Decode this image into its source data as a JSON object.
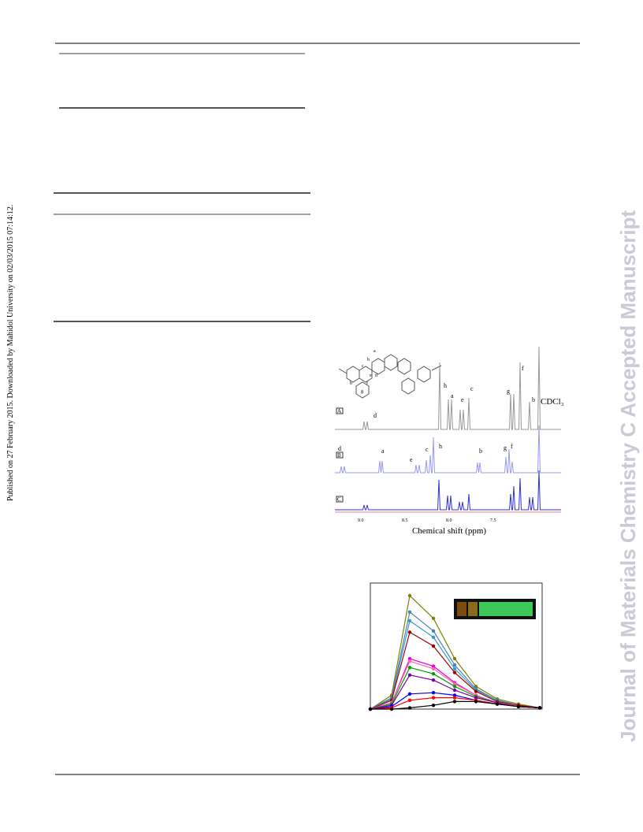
{
  "side_note": "Published on 27 February 2015. Downloaded by Mahidol University on 02/03/2015 07:14:12.",
  "watermark": "Journal of Materials Chemistry C Accepted Manuscript",
  "nmr_figure": {
    "panels": [
      "A",
      "B",
      "C"
    ],
    "solvent": "CDCl₃",
    "x_axis_label": "Chemical shift (ppm)",
    "xticks": [
      "9.0",
      "8.5",
      "8.0",
      "7.5"
    ],
    "panel_a_peaks": [
      "d",
      "h",
      "a",
      "e",
      "c",
      "g",
      "f",
      "b"
    ],
    "panel_b_peaks": [
      "d",
      "a",
      "e",
      "c",
      "h",
      "b",
      "g",
      "f"
    ],
    "structure_labels": [
      "a",
      "b",
      "c",
      "d",
      "e",
      "f",
      "g",
      "b"
    ]
  },
  "chart_data": {
    "type": "line",
    "x": [
      0,
      27,
      50,
      80,
      107,
      134,
      161,
      188,
      215
    ],
    "xlim": [
      0,
      218
    ],
    "ylim": [
      0,
      100
    ],
    "series": [
      {
        "color": "#808000",
        "values": [
          0,
          11,
          90,
          72,
          40,
          18,
          8,
          4,
          1
        ]
      },
      {
        "color": "#4682b4",
        "values": [
          0,
          9,
          77,
          62,
          35,
          16,
          7,
          3,
          1
        ]
      },
      {
        "color": "#3399cc",
        "values": [
          0,
          8,
          70,
          57,
          32,
          15,
          7,
          3,
          1
        ]
      },
      {
        "color": "#a00000",
        "values": [
          0,
          7,
          61,
          50,
          29,
          14,
          6,
          3,
          1
        ]
      },
      {
        "color": "#e000e0",
        "values": [
          0,
          5,
          40,
          34,
          21,
          11,
          5,
          2,
          1
        ]
      },
      {
        "color": "#ff66aa",
        "values": [
          0,
          5,
          38,
          32,
          20,
          11,
          5,
          2,
          1
        ]
      },
      {
        "color": "#00a000",
        "values": [
          0,
          4,
          33,
          28,
          18,
          10,
          5,
          2,
          1
        ]
      },
      {
        "color": "#7a00a0",
        "values": [
          0,
          3,
          27,
          23,
          15,
          9,
          5,
          2,
          1
        ]
      },
      {
        "color": "#0000ff",
        "values": [
          0,
          2,
          12,
          13,
          11,
          7,
          4,
          2,
          1
        ]
      },
      {
        "color": "#ff0000",
        "values": [
          0,
          1,
          7,
          9,
          9,
          7,
          4,
          2,
          1
        ]
      },
      {
        "color": "#000000",
        "values": [
          0,
          0,
          1,
          3,
          6,
          6,
          4,
          2,
          1
        ]
      }
    ]
  }
}
